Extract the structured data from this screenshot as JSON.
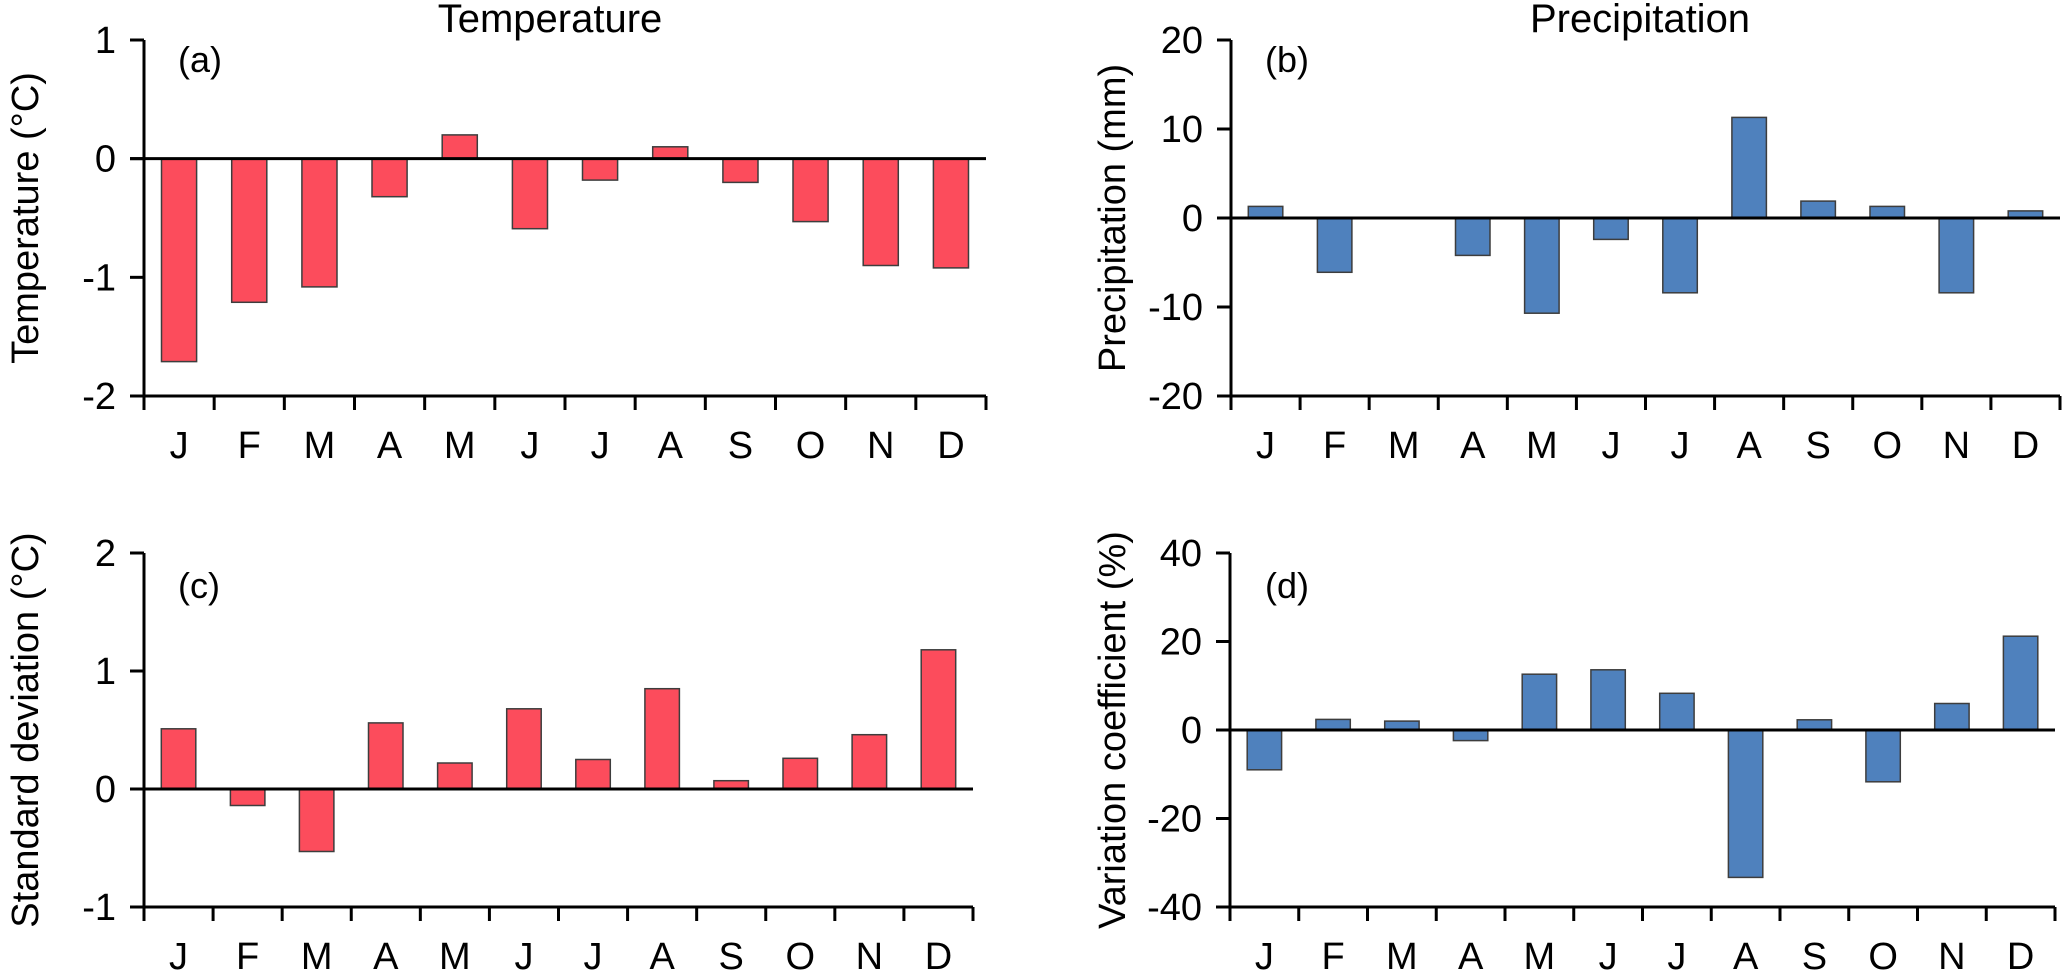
{
  "figure": {
    "column_titles": [
      "Temperature",
      "Precipitation"
    ]
  },
  "colors": {
    "temperature_bar": "#fc4c5c",
    "precipitation_bar": "#4f81bd"
  },
  "chart_data": [
    {
      "id": "a",
      "type": "bar",
      "panel_label": "(a)",
      "column_title": "Temperature",
      "title": "",
      "xlabel": "",
      "ylabel": "Temperature (°C)",
      "categories": [
        "J",
        "F",
        "M",
        "A",
        "M",
        "J",
        "J",
        "A",
        "S",
        "O",
        "N",
        "D"
      ],
      "values": [
        -1.71,
        -1.21,
        -1.08,
        -0.32,
        0.2,
        -0.59,
        -0.18,
        0.1,
        -0.2,
        -0.53,
        -0.9,
        -0.92
      ],
      "ylim": [
        -2,
        1
      ],
      "yticks": [
        1,
        0,
        -1,
        -2
      ],
      "ytick_labels": [
        "1",
        "0",
        "-1",
        "-2"
      ],
      "color_key": "temperature_bar",
      "grid": false
    },
    {
      "id": "b",
      "type": "bar",
      "panel_label": "(b)",
      "column_title": "Precipitation",
      "title": "",
      "xlabel": "",
      "ylabel": "Precipitation (mm)",
      "categories": [
        "J",
        "F",
        "M",
        "A",
        "M",
        "J",
        "J",
        "A",
        "S",
        "O",
        "N",
        "D"
      ],
      "values": [
        1.3,
        -6.1,
        0,
        -4.2,
        -10.7,
        -2.4,
        -8.4,
        11.3,
        1.9,
        1.3,
        -8.4,
        0.8
      ],
      "ylim": [
        -20,
        20
      ],
      "yticks": [
        20,
        10,
        0,
        -10,
        -20
      ],
      "ytick_labels": [
        "20",
        "10",
        "0",
        "-10",
        "-20"
      ],
      "color_key": "precipitation_bar",
      "grid": false
    },
    {
      "id": "c",
      "type": "bar",
      "panel_label": "(c)",
      "title": "",
      "xlabel": "",
      "ylabel": "Standard deviation (°C)",
      "categories": [
        "J",
        "F",
        "M",
        "A",
        "M",
        "J",
        "J",
        "A",
        "S",
        "O",
        "N",
        "D"
      ],
      "values": [
        0.51,
        -0.14,
        -0.53,
        0.56,
        0.22,
        0.68,
        0.25,
        0.85,
        0.07,
        0.26,
        0.46,
        1.18
      ],
      "ylim": [
        -1,
        2
      ],
      "yticks": [
        2,
        1,
        0,
        -1
      ],
      "ytick_labels": [
        "2",
        "1",
        "0",
        "-1"
      ],
      "color_key": "temperature_bar",
      "grid": false
    },
    {
      "id": "d",
      "type": "bar",
      "panel_label": "(d)",
      "title": "",
      "xlabel": "",
      "ylabel": "Variation coefficient (%)",
      "categories": [
        "J",
        "F",
        "M",
        "A",
        "M",
        "J",
        "J",
        "A",
        "S",
        "O",
        "N",
        "D"
      ],
      "values": [
        -9.0,
        2.4,
        2.0,
        -2.4,
        12.6,
        13.6,
        8.3,
        -33.3,
        2.3,
        -11.7,
        6.0,
        21.2
      ],
      "ylim": [
        -40,
        40
      ],
      "yticks": [
        40,
        20,
        0,
        -20,
        -40
      ],
      "ytick_labels": [
        "40",
        "20",
        "0",
        "-20",
        "-40"
      ],
      "color_key": "precipitation_bar",
      "grid": false
    }
  ]
}
